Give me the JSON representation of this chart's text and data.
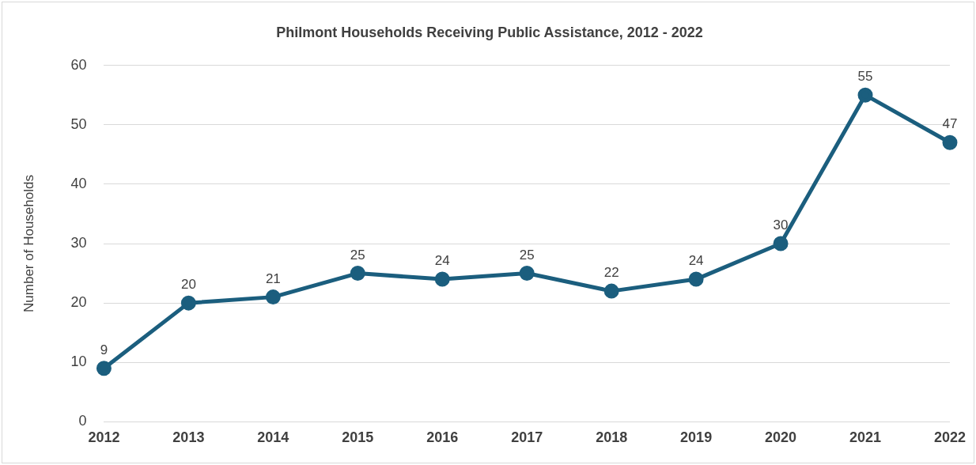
{
  "chart_data": {
    "type": "line",
    "title": "Philmont Households Receiving Public Assistance, 2012 - 2022",
    "ylabel": "Number of Households",
    "categories": [
      "2012",
      "2013",
      "2014",
      "2015",
      "2016",
      "2017",
      "2018",
      "2019",
      "2020",
      "2021",
      "2022"
    ],
    "series": [
      {
        "color": "#1b5e7e",
        "values": [
          9,
          20,
          21,
          25,
          24,
          25,
          22,
          24,
          30,
          55,
          47
        ]
      }
    ],
    "ylim": [
      0,
      60
    ],
    "yticks": [
      0,
      10,
      20,
      30,
      40,
      50,
      60
    ],
    "grid": "y",
    "legend": false,
    "marker": "circle",
    "line_style": "solid",
    "data_labels": true
  }
}
